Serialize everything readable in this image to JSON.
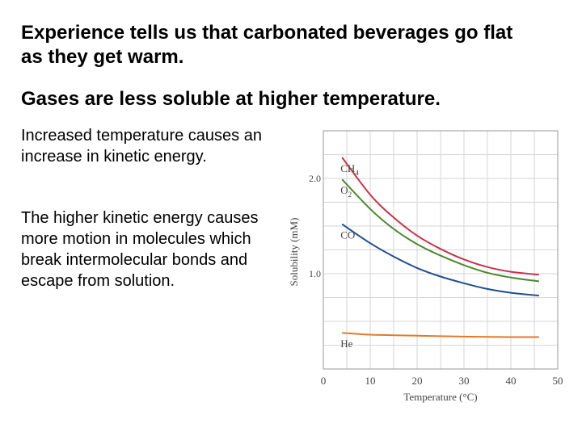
{
  "slide": {
    "heading1": "Experience tells us that carbonated beverages go flat as they get warm.",
    "heading2": "Gases are less soluble at higher temperature.",
    "para1": "Increased temperature causes an increase in kinetic energy.",
    "para2": "The higher kinetic energy causes more motion in molecules which break intermolecular bonds and escape from solution."
  },
  "chart_data": {
    "type": "line",
    "xlabel": "Temperature (°C)",
    "ylabel": "Solubility (mM)",
    "xlim": [
      0,
      50
    ],
    "ylim": [
      0,
      2.5
    ],
    "x_ticks": [
      "0",
      "10",
      "20",
      "30",
      "40",
      "50"
    ],
    "y_ticks": [
      "1.0",
      "2.0"
    ],
    "y_tick_values": [
      1.0,
      2.0
    ],
    "grid": true,
    "series": [
      {
        "name": "CH4",
        "label_main": "CH",
        "label_sub": "4",
        "color": "#c8324b",
        "x": [
          4,
          10,
          15,
          20,
          25,
          30,
          35,
          40,
          46
        ],
        "y": [
          2.22,
          1.83,
          1.59,
          1.4,
          1.26,
          1.15,
          1.07,
          1.02,
          0.99
        ]
      },
      {
        "name": "O2",
        "label_main": "O",
        "label_sub": "2",
        "color": "#4a8a2e",
        "x": [
          4,
          10,
          15,
          20,
          25,
          30,
          35,
          40,
          46
        ],
        "y": [
          1.99,
          1.68,
          1.47,
          1.31,
          1.19,
          1.09,
          1.01,
          0.96,
          0.92
        ]
      },
      {
        "name": "CO",
        "label_main": "CO",
        "label_sub": "",
        "color": "#1f4f8f",
        "x": [
          4,
          10,
          15,
          20,
          25,
          30,
          35,
          40,
          46
        ],
        "y": [
          1.52,
          1.32,
          1.18,
          1.06,
          0.97,
          0.9,
          0.84,
          0.8,
          0.77
        ]
      },
      {
        "name": "He",
        "label_main": "He",
        "label_sub": "",
        "color": "#e07a2a",
        "x": [
          4,
          10,
          20,
          30,
          40,
          46
        ],
        "y": [
          0.38,
          0.36,
          0.35,
          0.34,
          0.335,
          0.335
        ]
      }
    ]
  }
}
